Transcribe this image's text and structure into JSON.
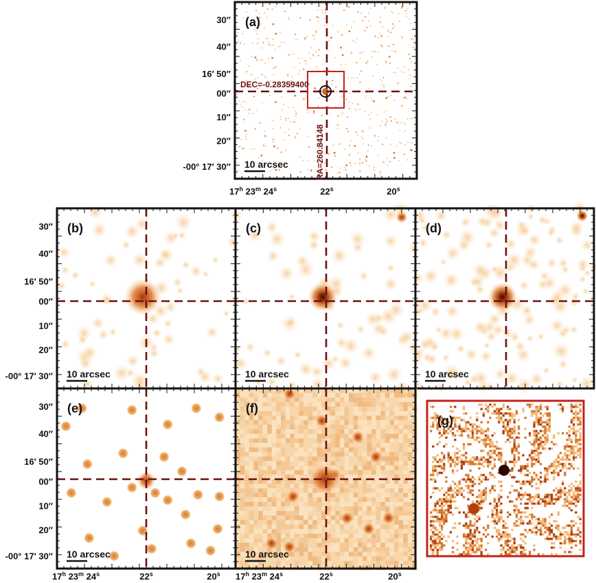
{
  "panels": [
    {
      "key": "a",
      "label": "(a)",
      "scalebar": "10 arcsec",
      "style": "sparse"
    },
    {
      "key": "b",
      "label": "(b)",
      "scalebar": "10 arcsec",
      "style": "blobs-light"
    },
    {
      "key": "c",
      "label": "(c)",
      "scalebar": "10 arcsec",
      "style": "blobs-light"
    },
    {
      "key": "d",
      "label": "(d)",
      "scalebar": "10 arcsec",
      "style": "blobs-dense"
    },
    {
      "key": "e",
      "label": "(e)",
      "scalebar": "10 arcsec",
      "style": "stars"
    },
    {
      "key": "f",
      "label": "(f)",
      "scalebar": "10 arcsec",
      "style": "pixel-bg"
    },
    {
      "key": "g",
      "label": "(g)",
      "style": "zoom"
    }
  ],
  "crosshair": {
    "dec_label": "DEC=-0.28359400",
    "ra_label": "RA=260.84148",
    "color": "#6b1010"
  },
  "dec_ticks": [
    {
      "text": "30″"
    },
    {
      "text": "40″"
    },
    {
      "text": "16′ 50″"
    },
    {
      "text": "00″"
    },
    {
      "text": "10″"
    },
    {
      "text": "20″"
    },
    {
      "text": "-00° 17′ 30″"
    }
  ],
  "ra_ticks": [
    {
      "h": "17",
      "hs": "h",
      "m": "23",
      "ms": "m",
      "s": "24",
      "ss": "s"
    },
    {
      "s": "22",
      "ss": "s"
    },
    {
      "s": "20",
      "ss": "s"
    }
  ],
  "colors": {
    "frame": "#111111",
    "zoom_frame": "#c0221b",
    "light": "#fbe3c4",
    "mid": "#e8a055",
    "dark": "#b04010",
    "core": "#3a0e00"
  }
}
